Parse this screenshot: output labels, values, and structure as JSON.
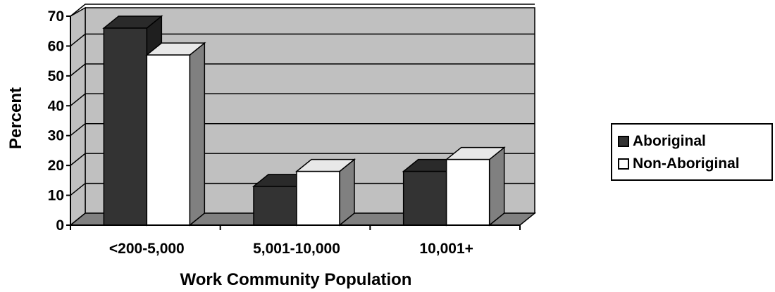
{
  "chart_data": {
    "type": "bar",
    "categories": [
      "<200-5,000",
      "5,001-10,000",
      "10,001+"
    ],
    "series": [
      {
        "name": "Aboriginal",
        "values": [
          66,
          13,
          18
        ]
      },
      {
        "name": "Non-Aboriginal",
        "values": [
          57,
          18,
          22
        ]
      }
    ],
    "xlabel": "Work Community Population",
    "ylabel": "Percent",
    "ylim": [
      0,
      70
    ],
    "yticks": [
      0,
      10,
      20,
      30,
      40,
      50,
      60,
      70
    ],
    "grid": true,
    "legend_position": "right",
    "colors": {
      "Aboriginal": "#333333",
      "Non-Aboriginal": "#ffffff",
      "plot_background": "#c0c0c0",
      "floor": "#808080"
    },
    "style": "3d-bar"
  }
}
